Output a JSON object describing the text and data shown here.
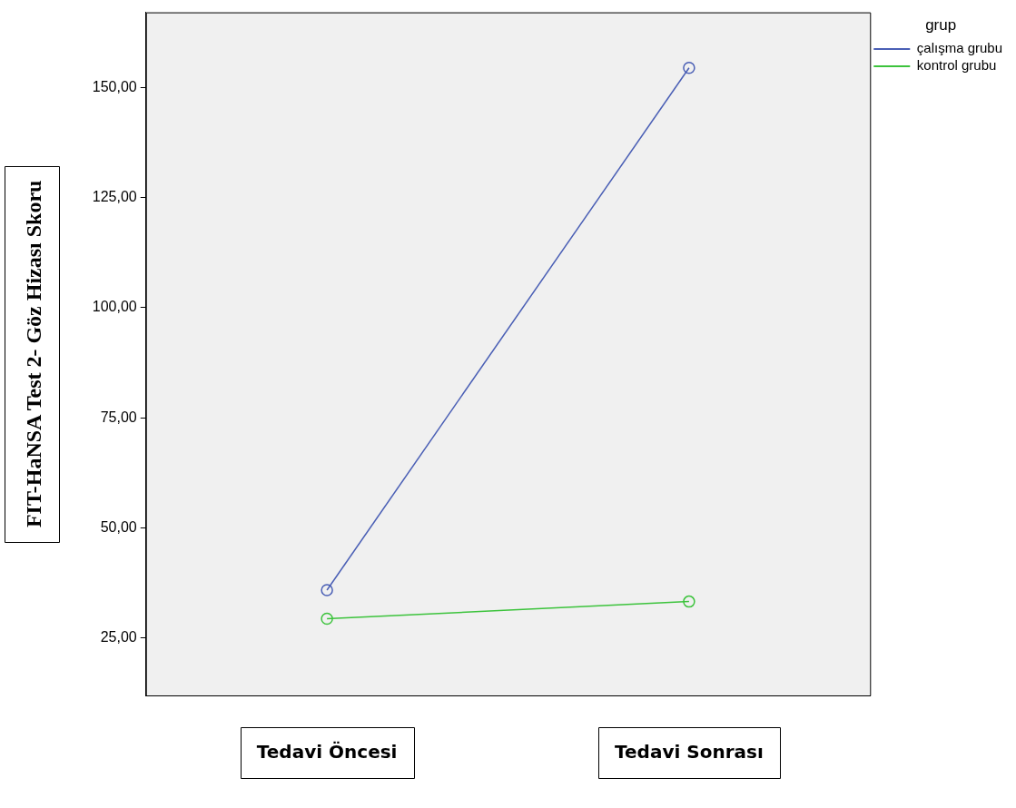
{
  "chart_data": {
    "type": "line",
    "xlabel": null,
    "ylabel": "FIT-HaNSA Test 2- Göz Hizası Skoru",
    "legend_title": "grup",
    "categories": [
      "Tedavi Öncesi",
      "Tedavi Sonrası"
    ],
    "series": [
      {
        "name": "çalışma grubu",
        "color": "#4a5fb5",
        "values": [
          35.9,
          154.4
        ]
      },
      {
        "name": "kontrol grubu",
        "color": "#3cc33c",
        "values": [
          29.4,
          33.3
        ]
      }
    ],
    "ylim": [
      12,
      167
    ],
    "yticks": [
      {
        "value": 25,
        "label": "25,00"
      },
      {
        "value": 50,
        "label": "50,00"
      },
      {
        "value": 75,
        "label": "75,00"
      },
      {
        "value": 100,
        "label": "100,00"
      },
      {
        "value": 125,
        "label": "125,00"
      },
      {
        "value": 150,
        "label": "150,00"
      }
    ],
    "grid": false,
    "legend": "top right",
    "marker": "circle",
    "line_style": "solid"
  }
}
